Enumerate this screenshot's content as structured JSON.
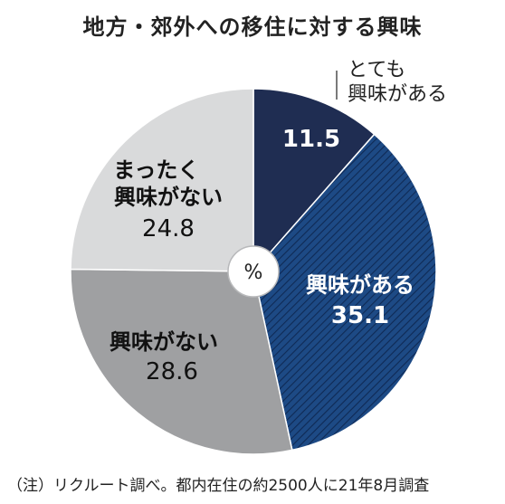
{
  "title": "地方・郊外への移住に対する興味",
  "unit": "%",
  "note": "（注）リクルート調べ。都内在住の約2500人に21年8月調査",
  "colors": {
    "very_interested": "#1f2d52",
    "interested": "#1d4a85",
    "interested_hatch": "#0f2a55",
    "not_interested": "#9fa0a2",
    "not_at_all": "#d9dadb"
  },
  "chart_data": {
    "type": "pie",
    "title": "地方・郊外への移住に対する興味",
    "unit": "%",
    "start_angle": "12 o'clock",
    "direction": "clockwise",
    "slices": [
      {
        "label": "とても興味がある",
        "value": 11.5
      },
      {
        "label": "興味がある",
        "value": 35.1
      },
      {
        "label": "興味がない",
        "value": 28.6
      },
      {
        "label": "まったく興味がない",
        "value": 24.8
      }
    ]
  }
}
